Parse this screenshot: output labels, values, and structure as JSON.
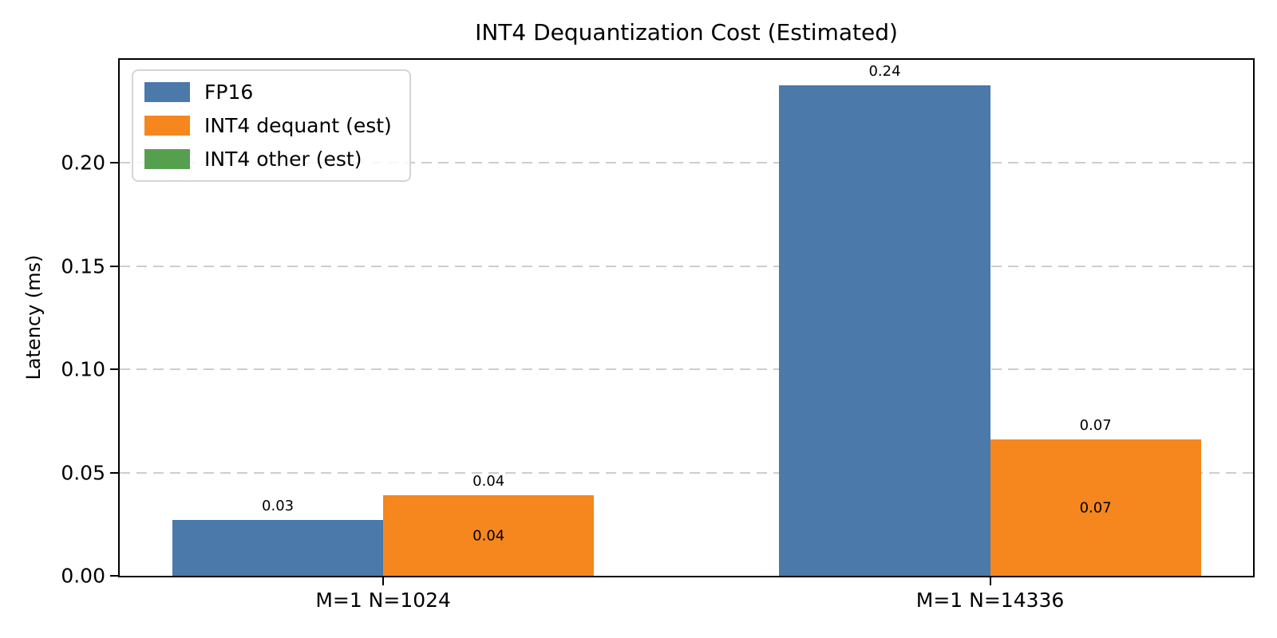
{
  "chart_data": {
    "type": "bar",
    "title": "INT4 Dequantization Cost (Estimated)",
    "ylabel": "Latency (ms)",
    "xlabel": "",
    "categories": [
      "M=1 N=1024",
      "M=1 N=14336"
    ],
    "series": [
      {
        "name": "FP16",
        "color": "#4A79AA",
        "stack": "fp16",
        "values": [
          0.027,
          0.2375
        ],
        "bar_labels": [
          "0.03",
          "0.24"
        ]
      },
      {
        "name": "INT4 dequant (est)",
        "color": "#F5871E",
        "stack": "int4",
        "values": [
          0.039,
          0.066
        ],
        "inside_labels": [
          "0.04",
          "0.07"
        ]
      },
      {
        "name": "INT4 other (est)",
        "color": "#55A04F",
        "stack": "int4",
        "values": [
          0.0,
          0.0
        ],
        "inside_labels": []
      }
    ],
    "int4_total_labels": [
      "0.04",
      "0.07"
    ],
    "ylim": [
      0,
      0.25
    ],
    "yticks": [
      {
        "label": "0.00",
        "value": 0.0
      },
      {
        "label": "0.05",
        "value": 0.05
      },
      {
        "label": "0.10",
        "value": 0.1
      },
      {
        "label": "0.15",
        "value": 0.15
      },
      {
        "label": "0.20",
        "value": 0.2
      }
    ],
    "grid": {
      "axis": "y",
      "style": "dashed",
      "color": "#cdcdcd",
      "axisbelow": true
    },
    "legend": {
      "position": "upper left",
      "entries": [
        "FP16",
        "INT4 dequant (est)",
        "INT4 other (est)"
      ]
    }
  }
}
